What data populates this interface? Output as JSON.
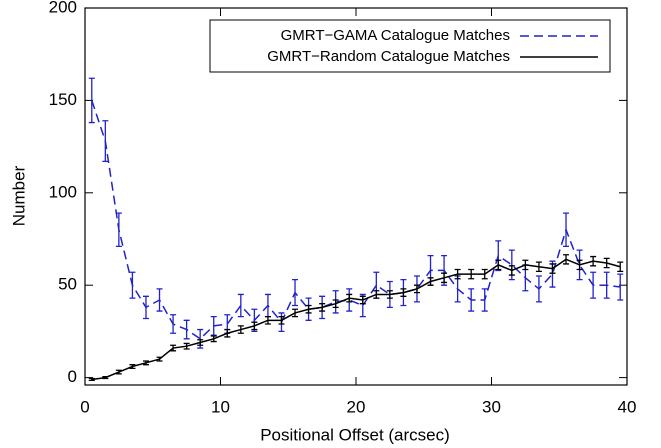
{
  "chart_data": {
    "type": "line",
    "xlabel": "Positional Offset (arcsec)",
    "ylabel": "Number",
    "x": [
      0.5,
      1.5,
      2.5,
      3.5,
      4.5,
      5.5,
      6.5,
      7.5,
      8.5,
      9.5,
      10.5,
      11.5,
      12.5,
      13.5,
      14.5,
      15.5,
      16.5,
      17.5,
      18.5,
      19.5,
      20.5,
      21.5,
      22.5,
      23.5,
      24.5,
      25.5,
      26.5,
      27.5,
      28.5,
      29.5,
      30.5,
      31.5,
      32.5,
      33.5,
      34.5,
      35.5,
      36.5,
      37.5,
      38.5,
      39.5
    ],
    "series": [
      {
        "name": "GMRT−GAMA Catalogue Matches",
        "color": "#2222cc",
        "dash": true,
        "values": [
          150,
          128,
          80,
          50,
          38,
          42,
          29,
          26,
          21,
          28,
          29,
          39,
          31,
          39,
          30,
          46,
          37,
          38,
          41,
          42,
          39,
          50,
          45,
          46,
          48,
          58,
          58,
          48,
          42,
          42,
          66,
          61,
          54,
          48,
          56,
          80,
          61,
          50,
          50,
          49
        ],
        "errors": [
          12,
          11,
          9,
          7,
          6,
          6,
          5,
          5,
          5,
          5,
          5,
          6,
          6,
          6,
          5,
          7,
          6,
          6,
          6,
          6,
          6,
          7,
          7,
          7,
          7,
          8,
          8,
          7,
          6,
          6,
          8,
          8,
          7,
          7,
          7,
          9,
          8,
          7,
          7,
          7
        ]
      },
      {
        "name": "GMRT−Random Catalogue Matches",
        "color": "#000000",
        "dash": false,
        "values": [
          -1,
          0,
          3,
          6,
          8,
          10,
          16,
          17,
          19,
          21,
          24,
          26,
          28,
          31,
          31,
          35,
          37,
          38,
          40,
          43,
          42,
          45,
          45,
          46,
          48,
          52,
          54,
          56,
          56,
          56,
          61,
          58,
          61,
          60,
          59,
          64,
          61,
          63,
          62,
          60
        ],
        "errors": [
          0.5,
          0.5,
          1,
          1,
          1,
          1,
          1.5,
          1.5,
          1.5,
          1.5,
          2,
          2,
          2,
          2,
          2,
          2,
          2,
          2,
          2,
          2,
          2,
          2,
          2,
          2,
          2,
          2,
          2.5,
          2.5,
          2.5,
          2.5,
          2.5,
          2.5,
          2.5,
          2.5,
          2.5,
          2.5,
          2.5,
          2.5,
          2.5,
          2.5
        ]
      }
    ],
    "xlim": [
      0,
      40
    ],
    "xticks": [
      0,
      10,
      20,
      30,
      40
    ],
    "ylim": [
      -4,
      200
    ],
    "yticks": [
      0,
      50,
      100,
      150,
      200
    ],
    "legend": "upper right"
  }
}
